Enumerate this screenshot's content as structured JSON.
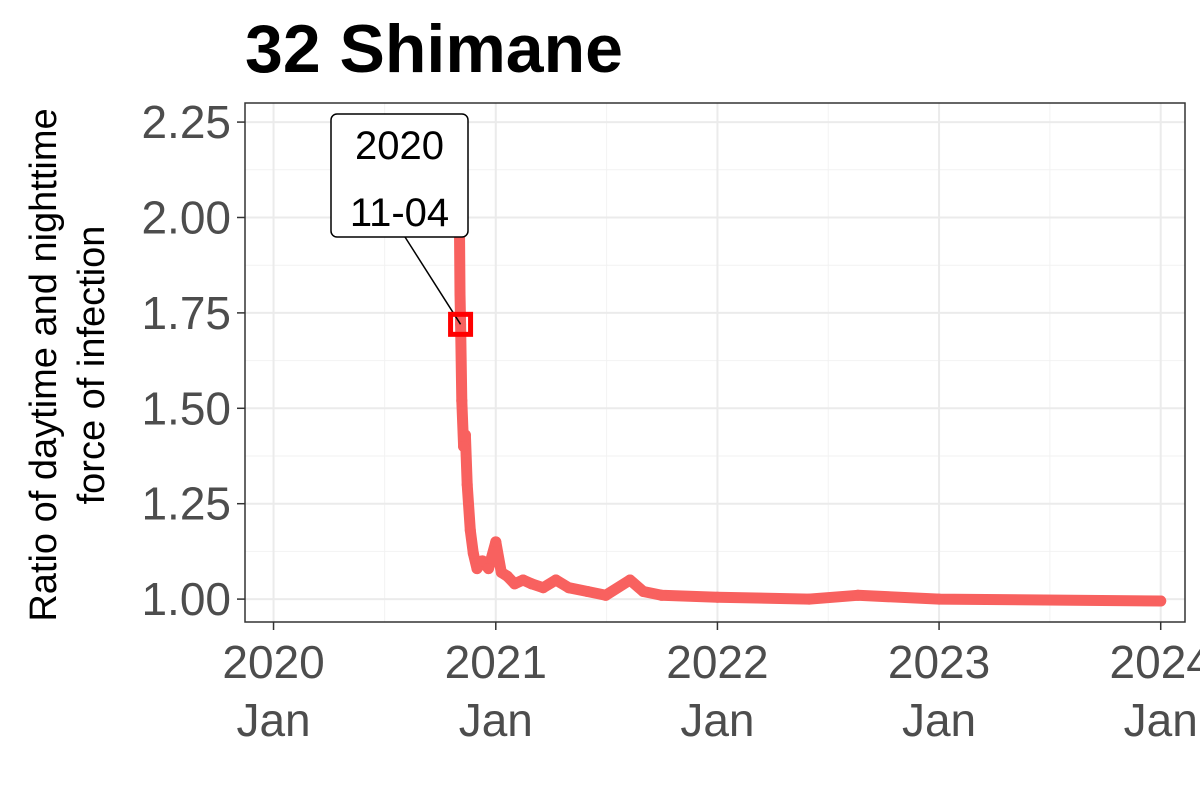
{
  "chart_data": {
    "type": "line",
    "title": "32 Shimane",
    "ylabel_lines": [
      "Ratio of daytime and nighttime",
      "force of infection"
    ],
    "xlabel": "",
    "ylim": [
      0.94,
      2.3
    ],
    "xlim": [
      "2019-11-15",
      "2024-02-10"
    ],
    "grid": true,
    "y_ticks": [
      1.0,
      1.25,
      1.5,
      1.75,
      2.0,
      2.25
    ],
    "y_tick_labels": [
      "1.00",
      "1.25",
      "1.50",
      "1.75",
      "2.00",
      "2.25"
    ],
    "x_ticks": [
      "2020-01-01",
      "2021-01-01",
      "2022-01-01",
      "2023-01-01",
      "2024-01-01"
    ],
    "x_tick_labels": [
      {
        "year": "2020",
        "month": "Jan"
      },
      {
        "year": "2021",
        "month": "Jan"
      },
      {
        "year": "2022",
        "month": "Jan"
      },
      {
        "year": "2023",
        "month": "Jan"
      },
      {
        "year": "2024",
        "month": "Jan"
      }
    ],
    "series": [
      {
        "color": "#f8615f",
        "points": [
          [
            "2020-11-01",
            2.23
          ],
          [
            "2020-11-03",
            1.8
          ],
          [
            "2020-11-04",
            1.72
          ],
          [
            "2020-11-06",
            1.52
          ],
          [
            "2020-11-09",
            1.4
          ],
          [
            "2020-11-12",
            1.43
          ],
          [
            "2020-11-15",
            1.3
          ],
          [
            "2020-11-20",
            1.18
          ],
          [
            "2020-11-25",
            1.12
          ],
          [
            "2020-12-01",
            1.08
          ],
          [
            "2020-12-10",
            1.1
          ],
          [
            "2020-12-20",
            1.08
          ],
          [
            "2021-01-01",
            1.15
          ],
          [
            "2021-01-10",
            1.07
          ],
          [
            "2021-01-20",
            1.06
          ],
          [
            "2021-02-01",
            1.04
          ],
          [
            "2021-02-15",
            1.05
          ],
          [
            "2021-03-01",
            1.04
          ],
          [
            "2021-03-20",
            1.03
          ],
          [
            "2021-04-10",
            1.05
          ],
          [
            "2021-05-01",
            1.03
          ],
          [
            "2021-06-01",
            1.02
          ],
          [
            "2021-07-01",
            1.01
          ],
          [
            "2021-08-10",
            1.05
          ],
          [
            "2021-09-01",
            1.02
          ],
          [
            "2021-10-01",
            1.01
          ],
          [
            "2022-01-01",
            1.005
          ],
          [
            "2022-06-01",
            1.0
          ],
          [
            "2022-08-20",
            1.01
          ],
          [
            "2023-01-01",
            1.0
          ],
          [
            "2024-01-01",
            0.995
          ]
        ]
      }
    ],
    "highlight": {
      "date": "2020-11-04",
      "value": 1.72,
      "color": "#ff0000"
    },
    "annotation": {
      "lines": [
        "2020",
        "11-04"
      ]
    }
  }
}
